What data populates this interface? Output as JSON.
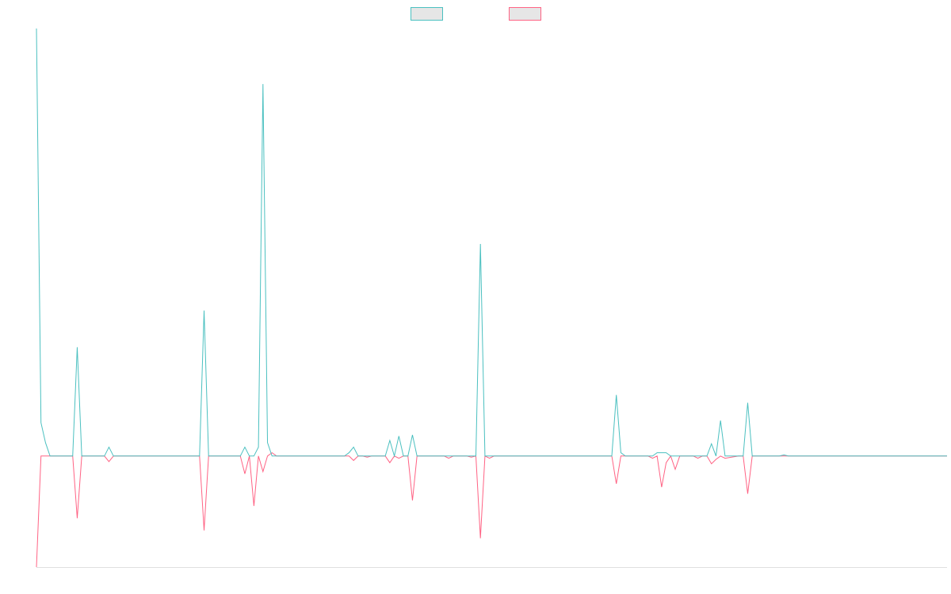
{
  "chart_data": {
    "type": "line",
    "title": "",
    "xlabel": "",
    "ylabel": "",
    "grid": false,
    "legend": "top-center",
    "ylim": [
      -100,
      385
    ],
    "series": [
      {
        "color": "#4bc0c0",
        "values": [
          [
            0,
            385
          ],
          [
            1,
            30
          ],
          [
            2,
            12
          ],
          [
            3,
            0
          ],
          [
            4,
            0
          ],
          [
            5,
            0
          ],
          [
            6,
            0
          ],
          [
            7,
            0
          ],
          [
            8,
            0
          ],
          [
            9,
            98
          ],
          [
            10,
            0
          ],
          [
            15,
            0
          ],
          [
            16,
            8
          ],
          [
            17,
            0
          ],
          [
            18,
            0
          ],
          [
            19,
            0
          ],
          [
            20,
            0
          ],
          [
            35,
            0
          ],
          [
            36,
            0
          ],
          [
            37,
            131
          ],
          [
            38,
            0
          ],
          [
            45,
            0
          ],
          [
            46,
            8
          ],
          [
            47,
            0
          ],
          [
            48,
            0
          ],
          [
            49,
            8
          ],
          [
            50,
            335
          ],
          [
            51,
            12
          ],
          [
            52,
            0
          ],
          [
            53,
            0
          ],
          [
            54,
            0
          ],
          [
            55,
            0
          ],
          [
            56,
            0
          ],
          [
            68,
            0
          ],
          [
            69,
            3
          ],
          [
            70,
            8
          ],
          [
            71,
            0
          ],
          [
            72,
            0
          ],
          [
            73,
            0
          ],
          [
            74,
            0
          ],
          [
            75,
            0
          ],
          [
            76,
            0
          ],
          [
            77,
            0
          ],
          [
            78,
            14
          ],
          [
            79,
            0
          ],
          [
            80,
            18
          ],
          [
            81,
            0
          ],
          [
            82,
            0
          ],
          [
            83,
            19
          ],
          [
            84,
            0
          ],
          [
            90,
            0
          ],
          [
            91,
            0
          ],
          [
            92,
            0
          ],
          [
            93,
            0
          ],
          [
            95,
            0
          ],
          [
            96,
            0
          ],
          [
            97,
            0
          ],
          [
            98,
            191
          ],
          [
            99,
            0
          ],
          [
            100,
            0
          ],
          [
            101,
            0
          ],
          [
            127,
            0
          ],
          [
            128,
            55
          ],
          [
            129,
            3
          ],
          [
            130,
            0
          ],
          [
            135,
            0
          ],
          [
            136,
            0
          ],
          [
            137,
            3
          ],
          [
            138,
            3
          ],
          [
            139,
            3
          ],
          [
            140,
            0
          ],
          [
            141,
            0
          ],
          [
            142,
            0
          ],
          [
            143,
            0
          ],
          [
            144,
            0
          ],
          [
            145,
            0
          ],
          [
            146,
            0
          ],
          [
            147,
            0
          ],
          [
            148,
            0
          ],
          [
            149,
            11
          ],
          [
            150,
            0
          ],
          [
            151,
            32
          ],
          [
            152,
            0
          ],
          [
            155,
            0
          ],
          [
            156,
            0
          ],
          [
            157,
            48
          ],
          [
            158,
            0
          ],
          [
            164,
            0
          ],
          [
            165,
            1
          ],
          [
            166,
            0
          ],
          [
            200,
            0
          ],
          [
            201,
            0
          ]
        ]
      },
      {
        "color": "#ff6384",
        "values": [
          [
            0,
            -100
          ],
          [
            1,
            0
          ],
          [
            2,
            0
          ],
          [
            3,
            0
          ],
          [
            4,
            0
          ],
          [
            5,
            0
          ],
          [
            6,
            0
          ],
          [
            7,
            0
          ],
          [
            8,
            0
          ],
          [
            9,
            -56
          ],
          [
            10,
            0
          ],
          [
            15,
            0
          ],
          [
            16,
            -5
          ],
          [
            17,
            0
          ],
          [
            18,
            0
          ],
          [
            19,
            0
          ],
          [
            20,
            0
          ],
          [
            35,
            0
          ],
          [
            36,
            0
          ],
          [
            37,
            -67
          ],
          [
            38,
            0
          ],
          [
            45,
            0
          ],
          [
            46,
            -16
          ],
          [
            47,
            0
          ],
          [
            48,
            -45
          ],
          [
            49,
            0
          ],
          [
            50,
            -14
          ],
          [
            51,
            0
          ],
          [
            52,
            3
          ],
          [
            53,
            0
          ],
          [
            54,
            0
          ],
          [
            55,
            0
          ],
          [
            56,
            0
          ],
          [
            68,
            0
          ],
          [
            69,
            0
          ],
          [
            70,
            -4
          ],
          [
            71,
            0
          ],
          [
            72,
            0
          ],
          [
            73,
            -1
          ],
          [
            74,
            0
          ],
          [
            75,
            0
          ],
          [
            76,
            0
          ],
          [
            77,
            0
          ],
          [
            78,
            -6
          ],
          [
            79,
            0
          ],
          [
            80,
            -2
          ],
          [
            81,
            0
          ],
          [
            82,
            0
          ],
          [
            83,
            -40
          ],
          [
            84,
            0
          ],
          [
            90,
            0
          ],
          [
            91,
            -2
          ],
          [
            92,
            0
          ],
          [
            93,
            0
          ],
          [
            95,
            0
          ],
          [
            96,
            -1
          ],
          [
            97,
            0
          ],
          [
            98,
            -74
          ],
          [
            99,
            0
          ],
          [
            100,
            -2
          ],
          [
            101,
            0
          ],
          [
            127,
            0
          ],
          [
            128,
            -25
          ],
          [
            129,
            0
          ],
          [
            130,
            0
          ],
          [
            135,
            0
          ],
          [
            136,
            -2
          ],
          [
            137,
            0
          ],
          [
            138,
            -28
          ],
          [
            139,
            -6
          ],
          [
            140,
            0
          ],
          [
            141,
            -12
          ],
          [
            142,
            0
          ],
          [
            143,
            0
          ],
          [
            144,
            0
          ],
          [
            145,
            0
          ],
          [
            146,
            -2
          ],
          [
            147,
            0
          ],
          [
            148,
            0
          ],
          [
            149,
            -7
          ],
          [
            150,
            -3
          ],
          [
            151,
            0
          ],
          [
            152,
            -2
          ],
          [
            155,
            0
          ],
          [
            156,
            0
          ],
          [
            157,
            -34
          ],
          [
            158,
            0
          ],
          [
            164,
            0
          ],
          [
            165,
            0
          ],
          [
            166,
            0
          ],
          [
            200,
            0
          ],
          [
            201,
            0
          ]
        ]
      }
    ]
  }
}
